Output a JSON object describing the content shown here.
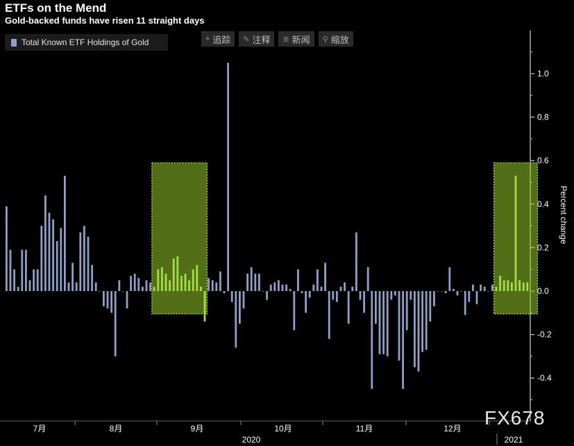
{
  "header": {
    "title": "ETFs on the Mend",
    "subtitle": "Gold-backed funds have risen 11 straight days"
  },
  "legend": {
    "label": "Total Known ETF Holdings of Gold"
  },
  "toolbar": [
    {
      "icon": "crosshair-icon",
      "glyph": "⌖",
      "label": "追踪"
    },
    {
      "icon": "pencil-icon",
      "glyph": "✎",
      "label": "注释"
    },
    {
      "icon": "news-icon",
      "glyph": "≣",
      "label": "新闻"
    },
    {
      "icon": "zoom-icon",
      "glyph": "⚲",
      "label": "缩放"
    }
  ],
  "watermark": "FX678",
  "colors": {
    "bar": "#8e9fc8",
    "highlight": "#a6dc44",
    "background": "#000000"
  },
  "chart_data": {
    "type": "bar",
    "title": "ETFs on the Mend",
    "subtitle": "Gold-backed funds have risen 11 straight days",
    "ylabel": "Percent change",
    "ylim": [
      -0.6,
      1.2
    ],
    "yticks": [
      -0.4,
      -0.2,
      0.0,
      0.2,
      0.4,
      0.6,
      0.8,
      1.0
    ],
    "ytick_labels": [
      "-0.4",
      "-0.2",
      "0.0",
      "0.2",
      "0.4",
      "0.6",
      "0.8",
      "1.0"
    ],
    "month_labels": [
      "7月",
      "8月",
      "9月",
      "10月",
      "11月",
      "12月"
    ],
    "year_labels": [
      "2020",
      "2021"
    ],
    "legend_position": "top-left",
    "series": [
      {
        "name": "Total Known ETF Holdings of Gold",
        "values": [
          0.39,
          0.19,
          0.1,
          0.02,
          0.19,
          0.19,
          0.05,
          0.1,
          0.1,
          0.3,
          0.44,
          0.36,
          0.33,
          0.23,
          0.29,
          0.53,
          0.04,
          0.13,
          0.04,
          0.27,
          0.3,
          0.25,
          0.12,
          0.04,
          0.0,
          -0.07,
          -0.08,
          -0.1,
          -0.3,
          0.05,
          0.0,
          -0.08,
          0.07,
          0.08,
          0.06,
          0.02,
          0.05,
          0.04,
          0.02,
          0.1,
          0.11,
          0.08,
          0.05,
          0.15,
          0.16,
          0.07,
          0.08,
          0.05,
          0.1,
          0.12,
          0.02,
          -0.14,
          0.06,
          0.05,
          0.04,
          0.09,
          -0.01,
          1.05,
          -0.05,
          -0.26,
          -0.15,
          -0.08,
          0.08,
          0.11,
          0.08,
          0.08,
          0.0,
          -0.04,
          0.03,
          0.04,
          0.05,
          0.03,
          0.03,
          0.01,
          -0.18,
          0.1,
          -0.01,
          -0.1,
          -0.03,
          0.03,
          0.1,
          0.02,
          0.13,
          -0.22,
          -0.04,
          -0.05,
          0.02,
          0.04,
          -0.15,
          0.02,
          0.27,
          -0.04,
          -0.1,
          0.11,
          -0.45,
          -0.15,
          -0.29,
          -0.29,
          -0.3,
          -0.04,
          -0.02,
          -0.32,
          -0.45,
          -0.18,
          -0.04,
          -0.35,
          -0.37,
          -0.28,
          -0.27,
          -0.14,
          -0.07,
          0.0,
          0.0,
          -0.01,
          0.11,
          0.01,
          -0.02,
          0.0,
          -0.11,
          -0.05,
          0.03,
          -0.06,
          0.03,
          0.02,
          0.0,
          0.03,
          0.02,
          0.07,
          0.05,
          0.05,
          0.04,
          0.53,
          0.05,
          0.04,
          0.04
        ],
        "highlight_windows": [
          [
            38,
            51
          ],
          [
            126,
            136
          ]
        ]
      }
    ]
  }
}
